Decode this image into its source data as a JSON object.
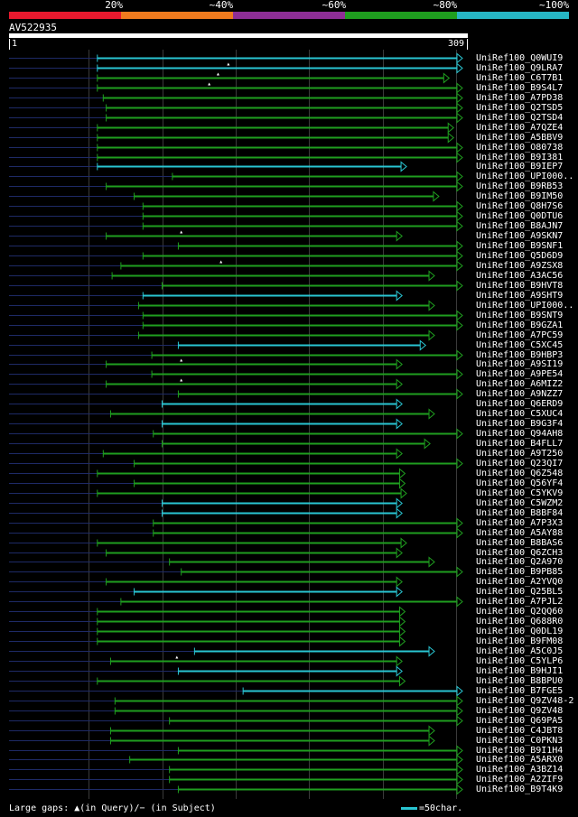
{
  "scale": {
    "segments": [
      {
        "label": "20%",
        "color": "#e8192e"
      },
      {
        "label": "~40%",
        "color": "#f07b1e"
      },
      {
        "label": "~60%",
        "color": "#8e2e96"
      },
      {
        "label": "~80%",
        "color": "#1f9e1f"
      },
      {
        "label": "~100%",
        "color": "#26b6c4"
      }
    ]
  },
  "query": {
    "id": "AV522935",
    "start": "1",
    "end": "309"
  },
  "colors": {
    "green": "#1f9e1f",
    "cyan": "#29c5d2",
    "dotted": "#1e2a66"
  },
  "alignments": [
    {
      "name": "UniRef100_Q0WUI9",
      "s": 61,
      "e": 309,
      "c": "cyan"
    },
    {
      "name": "UniRef100_Q9LRA7",
      "s": 61,
      "e": 309,
      "c": "cyan",
      "gap": 150
    },
    {
      "name": "UniRef100_C6T7B1",
      "s": 61,
      "e": 300,
      "c": "green",
      "gap": 143
    },
    {
      "name": "UniRef100_B9S4L7",
      "s": 61,
      "e": 309,
      "c": "green",
      "gap": 137
    },
    {
      "name": "UniRef100_A7PD38",
      "s": 65,
      "e": 309,
      "c": "green"
    },
    {
      "name": "UniRef100_Q2TSD5",
      "s": 67,
      "e": 309,
      "c": "green"
    },
    {
      "name": "UniRef100_Q2TSD4",
      "s": 67,
      "e": 309,
      "c": "green"
    },
    {
      "name": "UniRef100_A7QZE4",
      "s": 61,
      "e": 303,
      "c": "green"
    },
    {
      "name": "UniRef100_A5BBV9",
      "s": 61,
      "e": 303,
      "c": "green"
    },
    {
      "name": "UniRef100_O80738",
      "s": 61,
      "e": 309,
      "c": "green"
    },
    {
      "name": "UniRef100_B9I381",
      "s": 61,
      "e": 309,
      "c": "green"
    },
    {
      "name": "UniRef100_B9IEP7",
      "s": 61,
      "e": 271,
      "c": "cyan"
    },
    {
      "name": "UniRef100_UPI000..",
      "s": 112,
      "e": 309,
      "c": "green"
    },
    {
      "name": "UniRef100_B9RB53",
      "s": 67,
      "e": 309,
      "c": "green"
    },
    {
      "name": "UniRef100_B9IM50",
      "s": 86,
      "e": 293,
      "c": "green"
    },
    {
      "name": "UniRef100_Q8H7S6",
      "s": 92,
      "e": 309,
      "c": "green"
    },
    {
      "name": "UniRef100_Q0DTU6",
      "s": 92,
      "e": 309,
      "c": "green"
    },
    {
      "name": "UniRef100_B8AJN7",
      "s": 92,
      "e": 309,
      "c": "green"
    },
    {
      "name": "UniRef100_A9SKN7",
      "s": 67,
      "e": 268,
      "c": "green",
      "gap": 118
    },
    {
      "name": "UniRef100_B9SNF1",
      "s": 116,
      "e": 309,
      "c": "green"
    },
    {
      "name": "UniRef100_Q5D6D9",
      "s": 92,
      "e": 309,
      "c": "green"
    },
    {
      "name": "UniRef100_A9ZSX8",
      "s": 77,
      "e": 309,
      "c": "green",
      "gap": 145
    },
    {
      "name": "UniRef100_A3AC56",
      "s": 71,
      "e": 290,
      "c": "green"
    },
    {
      "name": "UniRef100_B9HVT8",
      "s": 105,
      "e": 309,
      "c": "green"
    },
    {
      "name": "UniRef100_A9SHT9",
      "s": 92,
      "e": 268,
      "c": "cyan"
    },
    {
      "name": "UniRef100_UPI000..",
      "s": 89,
      "e": 290,
      "c": "green"
    },
    {
      "name": "UniRef100_B9SNT9",
      "s": 92,
      "e": 309,
      "c": "green"
    },
    {
      "name": "UniRef100_B9GZA1",
      "s": 92,
      "e": 309,
      "c": "green"
    },
    {
      "name": "UniRef100_A7PC59",
      "s": 89,
      "e": 290,
      "c": "green"
    },
    {
      "name": "UniRef100_C5XC45",
      "s": 116,
      "e": 284,
      "c": "cyan"
    },
    {
      "name": "UniRef100_B9HBP3",
      "s": 98,
      "e": 309,
      "c": "green"
    },
    {
      "name": "UniRef100_A9SI19",
      "s": 67,
      "e": 268,
      "c": "green",
      "gap": 118
    },
    {
      "name": "UniRef100_A9PE54",
      "s": 98,
      "e": 309,
      "c": "green"
    },
    {
      "name": "UniRef100_A6MIZ2",
      "s": 67,
      "e": 268,
      "c": "green",
      "gap": 118
    },
    {
      "name": "UniRef100_A9NZZ7",
      "s": 116,
      "e": 309,
      "c": "green"
    },
    {
      "name": "UniRef100_Q6ERD9",
      "s": 105,
      "e": 268,
      "c": "cyan"
    },
    {
      "name": "UniRef100_C5XUC4",
      "s": 70,
      "e": 290,
      "c": "green"
    },
    {
      "name": "UniRef100_B9G3F4",
      "s": 105,
      "e": 268,
      "c": "cyan"
    },
    {
      "name": "UniRef100_Q94AH8",
      "s": 99,
      "e": 309,
      "c": "green"
    },
    {
      "name": "UniRef100_B4FLL7",
      "s": 105,
      "e": 287,
      "c": "green"
    },
    {
      "name": "UniRef100_A9T250",
      "s": 65,
      "e": 268,
      "c": "green"
    },
    {
      "name": "UniRef100_Q23QI7",
      "s": 86,
      "e": 309,
      "c": "green"
    },
    {
      "name": "UniRef100_Q6Z548",
      "s": 61,
      "e": 270,
      "c": "green"
    },
    {
      "name": "UniRef100_Q56YF4",
      "s": 86,
      "e": 270,
      "c": "green"
    },
    {
      "name": "UniRef100_C5YKV9",
      "s": 61,
      "e": 271,
      "c": "green"
    },
    {
      "name": "UniRef100_C5WZM2",
      "s": 105,
      "e": 268,
      "c": "cyan"
    },
    {
      "name": "UniRef100_B8BF84",
      "s": 105,
      "e": 268,
      "c": "cyan"
    },
    {
      "name": "UniRef100_A7P3X3",
      "s": 99,
      "e": 309,
      "c": "green"
    },
    {
      "name": "UniRef100_A5AY88",
      "s": 99,
      "e": 309,
      "c": "green"
    },
    {
      "name": "UniRef100_B8BAS6",
      "s": 61,
      "e": 271,
      "c": "green"
    },
    {
      "name": "UniRef100_Q6ZCH3",
      "s": 67,
      "e": 268,
      "c": "green"
    },
    {
      "name": "UniRef100_Q2A970",
      "s": 110,
      "e": 290,
      "c": "green"
    },
    {
      "name": "UniRef100_B9PB85",
      "s": 118,
      "e": 309,
      "c": "green"
    },
    {
      "name": "UniRef100_A2YVQ0",
      "s": 67,
      "e": 268,
      "c": "green"
    },
    {
      "name": "UniRef100_Q25BL5",
      "s": 86,
      "e": 268,
      "c": "cyan"
    },
    {
      "name": "UniRef100_A7PJL2",
      "s": 77,
      "e": 309,
      "c": "green"
    },
    {
      "name": "UniRef100_Q2QQ60",
      "s": 61,
      "e": 270,
      "c": "green"
    },
    {
      "name": "UniRef100_Q688R0",
      "s": 61,
      "e": 270,
      "c": "green"
    },
    {
      "name": "UniRef100_Q0DL19",
      "s": 61,
      "e": 270,
      "c": "green"
    },
    {
      "name": "UniRef100_B9FM08",
      "s": 61,
      "e": 270,
      "c": "green"
    },
    {
      "name": "UniRef100_A5C0J5",
      "s": 127,
      "e": 290,
      "c": "cyan"
    },
    {
      "name": "UniRef100_C5YLP6",
      "s": 70,
      "e": 268,
      "c": "green",
      "gap": 115
    },
    {
      "name": "UniRef100_B9HJI1",
      "s": 116,
      "e": 268,
      "c": "cyan"
    },
    {
      "name": "UniRef100_B8BPU0",
      "s": 61,
      "e": 270,
      "c": "green"
    },
    {
      "name": "UniRef100_B7FGE5",
      "s": 160,
      "e": 309,
      "c": "cyan"
    },
    {
      "name": "UniRef100_Q9ZV48-2",
      "s": 73,
      "e": 309,
      "c": "green"
    },
    {
      "name": "UniRef100_Q9ZV48",
      "s": 73,
      "e": 309,
      "c": "green"
    },
    {
      "name": "UniRef100_Q69PA5",
      "s": 110,
      "e": 309,
      "c": "green"
    },
    {
      "name": "UniRef100_C4JBT8",
      "s": 70,
      "e": 290,
      "c": "green"
    },
    {
      "name": "UniRef100_C0PKN3",
      "s": 70,
      "e": 290,
      "c": "green"
    },
    {
      "name": "UniRef100_B9I1H4",
      "s": 116,
      "e": 309,
      "c": "green"
    },
    {
      "name": "UniRef100_A5ARX0",
      "s": 83,
      "e": 309,
      "c": "green"
    },
    {
      "name": "UniRef100_A3BZ14",
      "s": 110,
      "e": 309,
      "c": "green"
    },
    {
      "name": "UniRef100_A2ZIF9",
      "s": 110,
      "e": 309,
      "c": "green"
    },
    {
      "name": "UniRef100_B9T4K9",
      "s": 116,
      "e": 309,
      "c": "green"
    }
  ],
  "legend": {
    "gaps_text": "Large gaps: ▲(in Query)/− (in Subject)",
    "scale_text": "=50char."
  }
}
